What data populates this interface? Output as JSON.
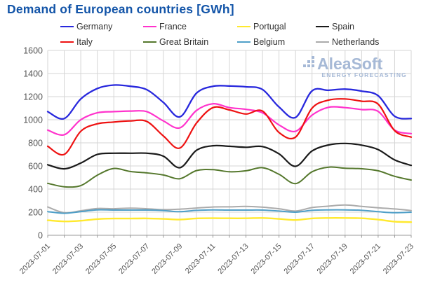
{
  "title": "Demand of European countries [GWh]",
  "watermark": {
    "brand": "AleaSoft",
    "subtitle": "ENERGY FORECASTING",
    "color": "#a6b9d6"
  },
  "legend": {
    "order": [
      "Germany",
      "France",
      "Portugal",
      "Spain",
      "Italy",
      "Great Britain",
      "Belgium",
      "Netherlands"
    ]
  },
  "axis": {
    "y_tick_labels": [
      "0",
      "200",
      "400",
      "600",
      "800",
      "1000",
      "1200",
      "1400",
      "1600"
    ],
    "x_tick_labels": [
      "2023-07-01",
      "2023-07-03",
      "2023-07-05",
      "2023-07-07",
      "2023-07-09",
      "2023-07-11",
      "2023-07-13",
      "2023-07-15",
      "2023-07-17",
      "2023-07-19",
      "2023-07-21",
      "2023-07-23"
    ]
  },
  "chart_data": {
    "type": "line",
    "title": "Demand of European countries [GWh]",
    "xlabel": "",
    "ylabel": "",
    "ylim": [
      0,
      1600
    ],
    "y_ticks": [
      0,
      200,
      400,
      600,
      800,
      1000,
      1200,
      1400,
      1600
    ],
    "grid": true,
    "legend_position": "top",
    "x": [
      "2023-07-01",
      "2023-07-02",
      "2023-07-03",
      "2023-07-04",
      "2023-07-05",
      "2023-07-06",
      "2023-07-07",
      "2023-07-08",
      "2023-07-09",
      "2023-07-10",
      "2023-07-11",
      "2023-07-12",
      "2023-07-13",
      "2023-07-14",
      "2023-07-15",
      "2023-07-16",
      "2023-07-17",
      "2023-07-18",
      "2023-07-19",
      "2023-07-20",
      "2023-07-21",
      "2023-07-22",
      "2023-07-23"
    ],
    "series": [
      {
        "name": "Portugal",
        "color": "#ffe92e",
        "width": 2.4,
        "values": [
          130,
          120,
          126,
          140,
          145,
          145,
          146,
          142,
          136,
          146,
          148,
          147,
          147,
          150,
          142,
          132,
          146,
          150,
          150,
          147,
          136,
          118,
          114
        ]
      },
      {
        "name": "Netherlands",
        "color": "#ababab",
        "width": 2,
        "values": [
          245,
          195,
          212,
          232,
          230,
          235,
          230,
          222,
          226,
          236,
          245,
          246,
          250,
          243,
          230,
          210,
          240,
          252,
          262,
          250,
          238,
          228,
          214
        ]
      },
      {
        "name": "Belgium",
        "color": "#4f9fc8",
        "width": 2,
        "values": [
          205,
          190,
          205,
          220,
          218,
          218,
          218,
          214,
          204,
          216,
          220,
          218,
          218,
          218,
          210,
          200,
          216,
          220,
          220,
          216,
          204,
          195,
          200
        ]
      },
      {
        "name": "Great Britain",
        "color": "#55782d",
        "width": 2,
        "values": [
          450,
          420,
          430,
          520,
          578,
          552,
          540,
          522,
          490,
          560,
          568,
          550,
          558,
          585,
          528,
          447,
          550,
          590,
          580,
          576,
          558,
          510,
          478
        ]
      },
      {
        "name": "Spain",
        "color": "#1a1a1a",
        "width": 2.2,
        "values": [
          610,
          575,
          625,
          700,
          710,
          710,
          710,
          685,
          585,
          735,
          775,
          770,
          762,
          768,
          705,
          597,
          730,
          782,
          795,
          780,
          742,
          652,
          605
        ]
      },
      {
        "name": "France",
        "color": "#ff33cc",
        "width": 2.2,
        "values": [
          910,
          870,
          1000,
          1060,
          1070,
          1075,
          1070,
          990,
          930,
          1080,
          1138,
          1105,
          1090,
          1060,
          955,
          900,
          1040,
          1108,
          1105,
          1088,
          1072,
          910,
          880
        ]
      },
      {
        "name": "Italy",
        "color": "#ee1111",
        "width": 2.2,
        "values": [
          770,
          700,
          900,
          965,
          980,
          990,
          985,
          860,
          755,
          970,
          1105,
          1085,
          1050,
          1075,
          890,
          850,
          1100,
          1170,
          1180,
          1160,
          1135,
          905,
          850
        ]
      },
      {
        "name": "Germany",
        "color": "#2828dd",
        "width": 2.3,
        "values": [
          1070,
          1010,
          1180,
          1270,
          1300,
          1290,
          1260,
          1150,
          1025,
          1230,
          1290,
          1292,
          1285,
          1262,
          1110,
          1020,
          1250,
          1255,
          1265,
          1248,
          1208,
          1030,
          1010
        ]
      }
    ]
  },
  "style": {
    "grid_color": "#d5d5d5",
    "axis_color": "#999999",
    "tick_label_color": "#555555",
    "legend_text_color": "#333333",
    "title_color": "#1254a8"
  }
}
